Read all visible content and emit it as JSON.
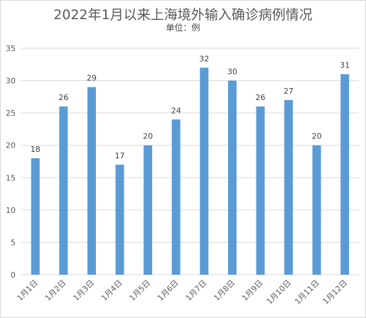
{
  "chart_data": {
    "type": "bar",
    "title": "2022年1月以来上海境外输入确诊病例情况",
    "subtitle": "单位：例",
    "categories": [
      "1月1日",
      "1月2日",
      "1月3日",
      "1月4日",
      "1月5日",
      "1月6日",
      "1月7日",
      "1月8日",
      "1月9日",
      "1月10日",
      "1月11日",
      "1月12日"
    ],
    "values": [
      18,
      26,
      29,
      17,
      20,
      24,
      32,
      30,
      26,
      27,
      20,
      31
    ],
    "ylim": [
      0,
      35
    ],
    "yticks": [
      0,
      5,
      10,
      15,
      20,
      25,
      30,
      35
    ],
    "grid": true,
    "bar_color": "#5b9bd5",
    "grid_color": "#d9d9d9",
    "data_labels": true
  }
}
